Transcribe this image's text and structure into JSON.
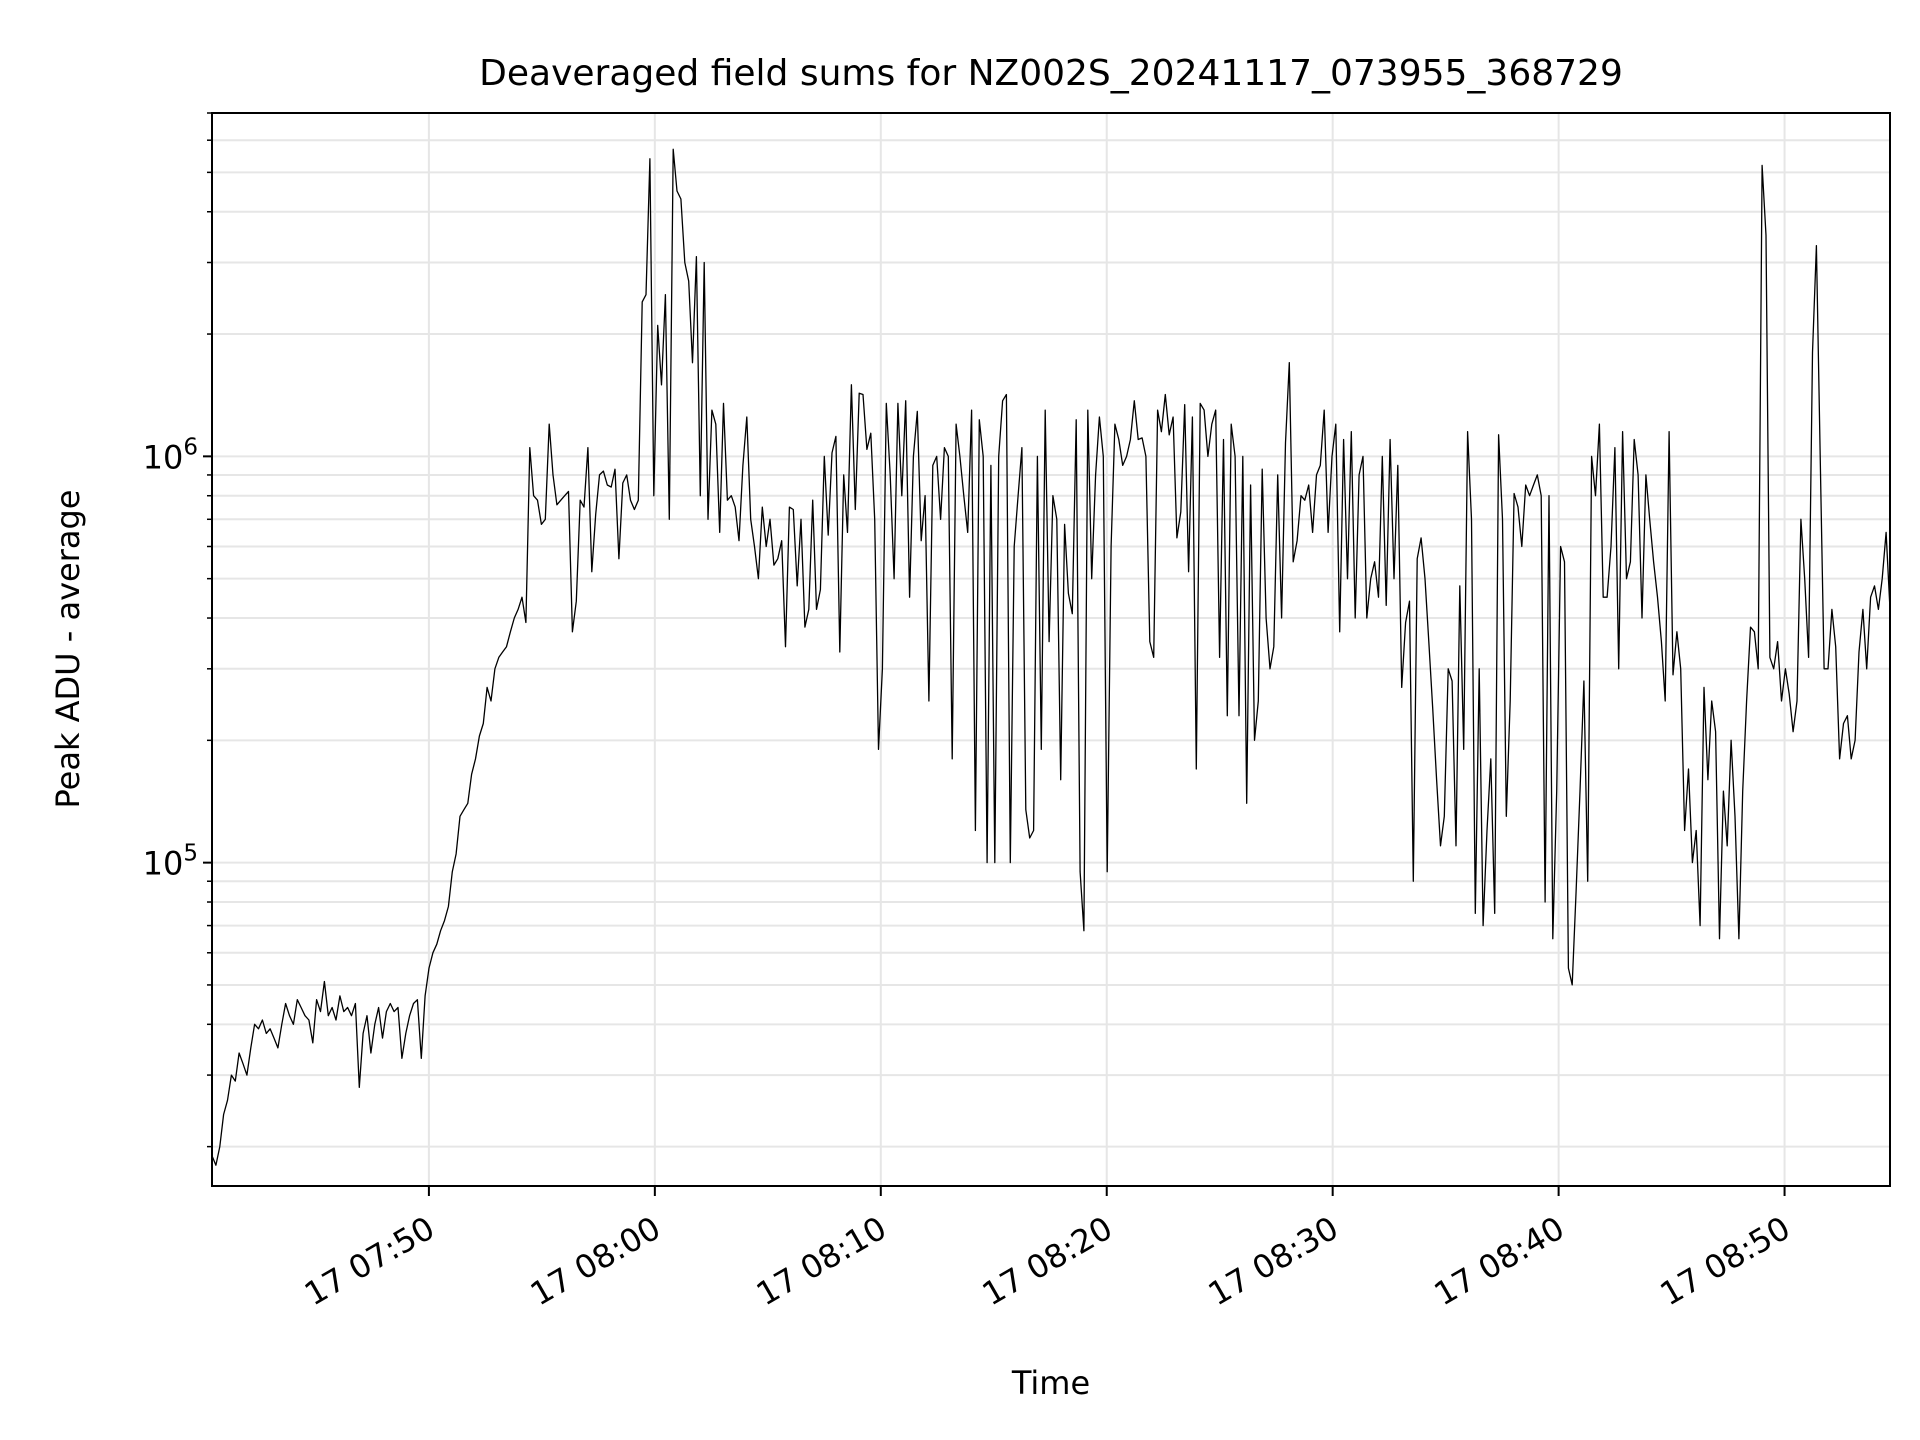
{
  "chart_data": {
    "type": "line",
    "title": "Deaveraged field sums for NZ002S_20241117_073955_368729",
    "xlabel": "Time",
    "ylabel": "Peak ADU - average",
    "yscale": "log",
    "ylim": [
      16000,
      7000000
    ],
    "xlim": [
      "17 07:40:24",
      "17 08:54:40"
    ],
    "grid": true,
    "line_color": "#000000",
    "grid_color": "#e6e6e6",
    "x_ticks": [
      "17 07:50",
      "17 08:00",
      "17 08:10",
      "17 08:20",
      "17 08:30",
      "17 08:40",
      "17 08:50"
    ],
    "y_ticks": [
      {
        "base": "10",
        "exp": "5",
        "value": 100000
      },
      {
        "base": "10",
        "exp": "6",
        "value": 1000000
      }
    ],
    "series": [
      {
        "x_start": "17 07:40:24",
        "x_end": "17 08:54:40",
        "values": [
          19000,
          18000,
          20000,
          24000,
          26000,
          30000,
          29000,
          34000,
          32000,
          30000,
          35000,
          40000,
          39000,
          41000,
          38000,
          39000,
          37000,
          35000,
          40000,
          45000,
          42000,
          40000,
          46000,
          44000,
          42000,
          41000,
          36000,
          46000,
          43000,
          51000,
          42000,
          44000,
          41000,
          47000,
          43000,
          44000,
          42000,
          45000,
          28000,
          38000,
          42000,
          34000,
          40000,
          44000,
          37000,
          43000,
          45000,
          43000,
          44000,
          33000,
          38000,
          42000,
          45000,
          46000,
          33000,
          47000,
          55000,
          60000,
          63000,
          68000,
          72000,
          78000,
          95000,
          105000,
          130000,
          135000,
          140000,
          165000,
          180000,
          205000,
          220000,
          270000,
          250000,
          300000,
          320000,
          330000,
          340000,
          370000,
          400000,
          420000,
          450000,
          390000,
          1050000,
          800000,
          780000,
          680000,
          700000,
          1200000,
          900000,
          760000,
          780000,
          800000,
          820000,
          370000,
          440000,
          780000,
          750000,
          1050000,
          520000,
          720000,
          900000,
          920000,
          850000,
          840000,
          930000,
          560000,
          860000,
          900000,
          780000,
          740000,
          780000,
          2400000,
          2500000,
          5400000,
          800000,
          2100000,
          1500000,
          2500000,
          700000,
          5700000,
          4500000,
          4300000,
          3000000,
          2700000,
          1700000,
          3100000,
          800000,
          3000000,
          700000,
          1300000,
          1200000,
          650000,
          1350000,
          780000,
          800000,
          750000,
          620000,
          950000,
          1250000,
          700000,
          600000,
          500000,
          750000,
          600000,
          700000,
          540000,
          560000,
          620000,
          340000,
          750000,
          740000,
          480000,
          700000,
          380000,
          420000,
          780000,
          420000,
          470000,
          1000000,
          640000,
          1020000,
          1120000,
          330000,
          900000,
          650000,
          1500000,
          740000,
          1430000,
          1420000,
          1040000,
          1140000,
          700000,
          190000,
          300000,
          1350000,
          900000,
          500000,
          1350000,
          800000,
          1370000,
          450000,
          1000000,
          1290000,
          620000,
          800000,
          250000,
          950000,
          1000000,
          700000,
          1050000,
          1000000,
          180000,
          1200000,
          1000000,
          800000,
          650000,
          1300000,
          120000,
          1230000,
          1000000,
          100000,
          950000,
          100000,
          1000000,
          1370000,
          1420000,
          100000,
          600000,
          800000,
          1050000,
          135000,
          115000,
          120000,
          1000000,
          190000,
          1300000,
          350000,
          800000,
          700000,
          160000,
          680000,
          460000,
          410000,
          1230000,
          95000,
          68000,
          1300000,
          500000,
          900000,
          1250000,
          1000000,
          95000,
          600000,
          1200000,
          1100000,
          950000,
          1000000,
          1100000,
          1370000,
          1100000,
          1110000,
          1000000,
          350000,
          320000,
          1300000,
          1150000,
          1420000,
          1130000,
          1250000,
          630000,
          730000,
          1340000,
          520000,
          1250000,
          170000,
          1350000,
          1300000,
          1000000,
          1200000,
          1300000,
          320000,
          1100000,
          230000,
          1200000,
          1000000,
          230000,
          1000000,
          140000,
          850000,
          200000,
          250000,
          930000,
          400000,
          300000,
          340000,
          900000,
          400000,
          1080000,
          1700000,
          550000,
          620000,
          800000,
          780000,
          850000,
          650000,
          900000,
          950000,
          1300000,
          650000,
          1000000,
          1200000,
          370000,
          1100000,
          500000,
          1150000,
          400000,
          900000,
          1000000,
          400000,
          500000,
          550000,
          450000,
          1000000,
          430000,
          1100000,
          500000,
          950000,
          270000,
          390000,
          440000,
          90000,
          560000,
          630000,
          500000,
          350000,
          240000,
          160000,
          110000,
          130000,
          300000,
          280000,
          110000,
          480000,
          190000,
          1150000,
          700000,
          75000,
          300000,
          70000,
          120000,
          180000,
          75000,
          1130000,
          700000,
          130000,
          250000,
          810000,
          750000,
          600000,
          850000,
          800000,
          850000,
          900000,
          800000,
          80000,
          800000,
          65000,
          150000,
          600000,
          550000,
          55000,
          50000,
          85000,
          150000,
          280000,
          90000,
          1000000,
          800000,
          1200000,
          450000,
          450000,
          600000,
          1050000,
          300000,
          1150000,
          500000,
          550000,
          1100000,
          900000,
          400000,
          900000,
          700000,
          550000,
          450000,
          350000,
          250000,
          1150000,
          290000,
          370000,
          300000,
          120000,
          170000,
          100000,
          120000,
          70000,
          270000,
          160000,
          250000,
          210000,
          65000,
          150000,
          110000,
          200000,
          130000,
          65000,
          150000,
          250000,
          380000,
          370000,
          300000,
          5200000,
          3500000,
          320000,
          300000,
          350000,
          250000,
          300000,
          260000,
          210000,
          250000,
          700000,
          500000,
          320000,
          1800000,
          3300000,
          1000000,
          300000,
          300000,
          420000,
          340000,
          180000,
          220000,
          230000,
          180000,
          200000,
          330000,
          420000,
          300000,
          450000,
          480000,
          420000,
          500000,
          650000,
          420000
        ]
      }
    ]
  }
}
